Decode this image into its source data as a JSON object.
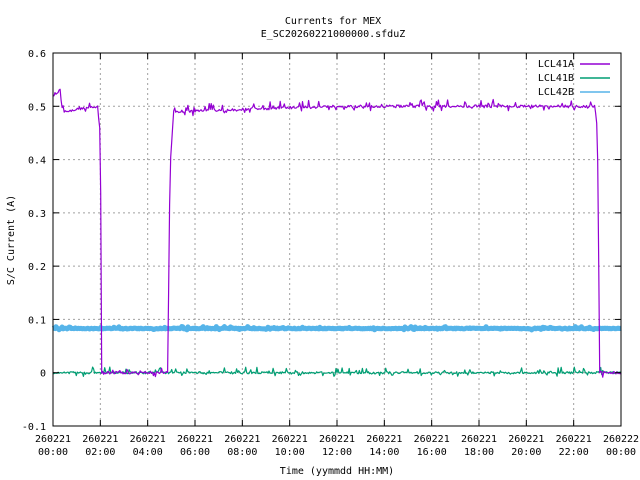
{
  "chart_data": {
    "type": "line",
    "title": "Currents for MEX",
    "subtitle": "E_SC20260221000000.sfduZ",
    "xlabel": "Time (yymmdd HH:MM)",
    "ylabel": "S/C Current (A)",
    "xlim_hours": [
      0,
      24
    ],
    "ylim": [
      -0.1,
      0.6
    ],
    "yticks": [
      "-0.1",
      "0",
      "0.1",
      "0.2",
      "0.3",
      "0.4",
      "0.5",
      "0.6"
    ],
    "xticks": [
      {
        "date": "260221",
        "time": "00:00"
      },
      {
        "date": "260221",
        "time": "02:00"
      },
      {
        "date": "260221",
        "time": "04:00"
      },
      {
        "date": "260221",
        "time": "06:00"
      },
      {
        "date": "260221",
        "time": "08:00"
      },
      {
        "date": "260221",
        "time": "10:00"
      },
      {
        "date": "260221",
        "time": "12:00"
      },
      {
        "date": "260221",
        "time": "14:00"
      },
      {
        "date": "260221",
        "time": "16:00"
      },
      {
        "date": "260221",
        "time": "18:00"
      },
      {
        "date": "260221",
        "time": "20:00"
      },
      {
        "date": "260221",
        "time": "22:00"
      },
      {
        "date": "260222",
        "time": "00:00"
      }
    ],
    "grid": true,
    "legend_position": "top-right",
    "series": [
      {
        "name": "LCL41A",
        "color": "#9400d3",
        "points": [
          [
            0.0,
            0.52
          ],
          [
            0.3,
            0.53
          ],
          [
            0.4,
            0.49
          ],
          [
            1.9,
            0.5
          ],
          [
            1.95,
            0.46
          ],
          [
            2.0,
            0.46
          ],
          [
            2.05,
            0.0
          ],
          [
            4.85,
            0.0
          ],
          [
            4.95,
            0.4
          ],
          [
            5.1,
            0.49
          ],
          [
            12.0,
            0.5
          ],
          [
            22.9,
            0.5
          ],
          [
            23.0,
            0.46
          ],
          [
            23.1,
            0.0
          ],
          [
            24.0,
            0.0
          ]
        ],
        "noise": 0.01
      },
      {
        "name": "LCL41B",
        "color": "#009e73",
        "points": [
          [
            0.0,
            0.0
          ],
          [
            1.9,
            0.0
          ],
          [
            2.05,
            0.0
          ],
          [
            3.5,
            0.0
          ],
          [
            5.0,
            0.0
          ],
          [
            24.0,
            0.0
          ]
        ],
        "noise": 0.008
      },
      {
        "name": "LCL42B",
        "color": "#56b4e9",
        "points": [
          [
            0.0,
            0.083
          ],
          [
            24.0,
            0.083
          ]
        ],
        "noise": 0.003
      }
    ]
  }
}
